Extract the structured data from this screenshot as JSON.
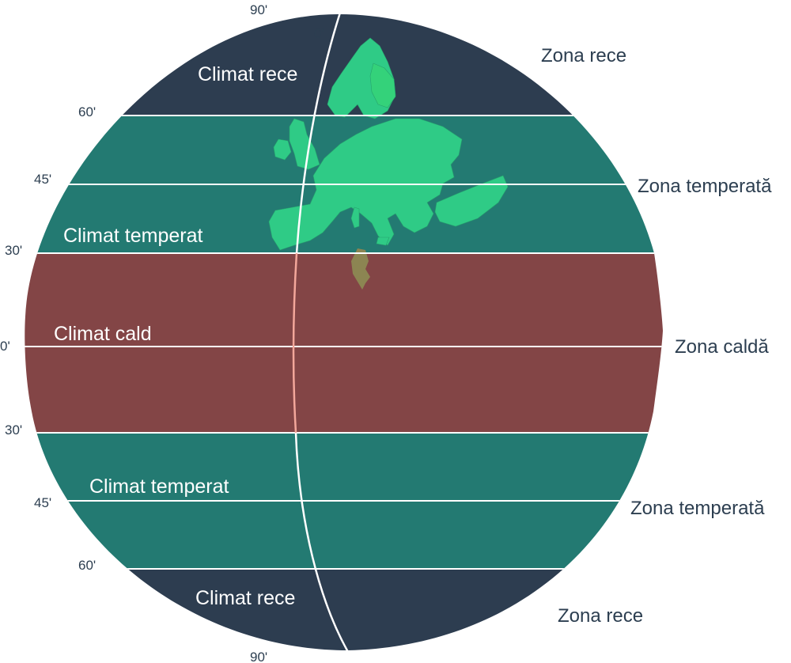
{
  "colors": {
    "cold": "#2d3d50",
    "temperate": "#237a72",
    "warm": "#834546",
    "europe": "#2fcb86",
    "tunisia": "#8c8552",
    "line": "#ffffff",
    "meridian_warm": "#f3a79b"
  },
  "latitude_labels": {
    "north_pole": "90'",
    "meridian": "0'",
    "north_60": "60'",
    "north_45": "45'",
    "north_30": "30'",
    "equator": "0'",
    "south_30": "30'",
    "south_45": "45'",
    "south_60": "60'",
    "south_pole": "90'"
  },
  "climates": {
    "north_cold": "Climat rece",
    "north_temperate": "Climat temperat",
    "warm": "Climat cald",
    "south_temperate": "Climat temperat",
    "south_cold": "Climat rece"
  },
  "zones": {
    "north_cold": "Zona rece",
    "north_temperate": "Zona temperată",
    "warm": "Zona caldă",
    "south_temperate": "Zona temperată",
    "south_cold": "Zona rece"
  },
  "map_icons": {
    "europe": "europe-map-icon",
    "tunisia": "tunisia-map-icon"
  }
}
